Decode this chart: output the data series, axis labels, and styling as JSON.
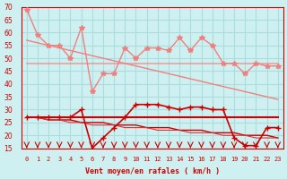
{
  "x": [
    0,
    1,
    2,
    3,
    4,
    5,
    6,
    7,
    8,
    9,
    10,
    11,
    12,
    13,
    14,
    15,
    16,
    17,
    18,
    19,
    20,
    21,
    22,
    23
  ],
  "rafales": [
    69,
    59,
    55,
    55,
    50,
    62,
    37,
    44,
    44,
    54,
    50,
    54,
    54,
    53,
    58,
    53,
    58,
    55,
    48,
    48,
    44,
    48,
    47,
    47
  ],
  "moyenne_line": [
    48,
    48,
    48,
    48,
    48,
    48,
    48,
    48,
    48,
    48,
    48,
    48,
    48,
    48,
    48,
    48,
    48,
    48,
    48,
    48,
    48,
    48,
    48,
    48
  ],
  "trend_rafales": [
    57,
    56,
    55,
    54,
    53,
    52,
    51,
    50,
    49,
    48,
    47,
    46,
    45,
    44,
    43,
    42,
    41,
    40,
    39,
    38,
    37,
    36,
    35,
    34
  ],
  "vent_moyen": [
    27,
    27,
    27,
    27,
    27,
    30,
    15,
    19,
    23,
    27,
    32,
    32,
    32,
    31,
    30,
    31,
    31,
    30,
    30,
    19,
    16,
    16,
    23,
    23
  ],
  "mean_vent": [
    27,
    27,
    27,
    27,
    27,
    27,
    27,
    27,
    27,
    27,
    27,
    27,
    27,
    27,
    27,
    27,
    27,
    27,
    27,
    27,
    27,
    27,
    27,
    27
  ],
  "trend_vent": [
    27,
    27,
    26,
    26,
    26,
    25,
    25,
    25,
    24,
    24,
    24,
    23,
    23,
    23,
    22,
    22,
    22,
    21,
    21,
    21,
    20,
    20,
    20,
    19
  ],
  "trend_vent2": [
    27,
    27,
    26,
    26,
    25,
    25,
    24,
    24,
    24,
    23,
    23,
    23,
    22,
    22,
    22,
    21,
    21,
    21,
    20,
    20,
    20,
    19,
    19,
    19
  ],
  "bg_color": "#cff0f0",
  "grid_color": "#aadddd",
  "light_red": "#f08080",
  "dark_red": "#cc0000",
  "medium_red": "#e03030",
  "xlabel": "Vent moyen/en rafales ( km/h )",
  "ylim_min": 15,
  "ylim_max": 70,
  "yticks": [
    15,
    20,
    25,
    30,
    35,
    40,
    45,
    50,
    55,
    60,
    65,
    70
  ]
}
